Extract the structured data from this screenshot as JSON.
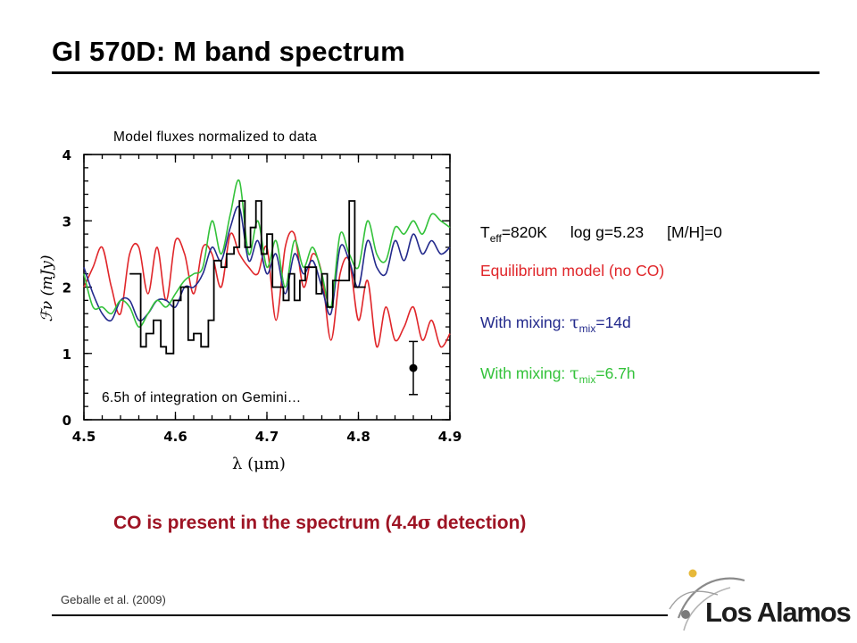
{
  "slide": {
    "title": "Gl 570D: M band spectrum",
    "citation": "Geballe et al. (2009)",
    "logo_text": "Los Alamos"
  },
  "notes": {
    "top": "Model fluxes normalized to data",
    "bottom": "6.5h of integration on Gemini…"
  },
  "legend": {
    "params": {
      "T": "T",
      "eff_sub": "eff",
      "teff_rest": "=820K",
      "logg": "log g=5.23",
      "metal": "[M/H]=0"
    },
    "equilibrium": {
      "text": "Equilibrium model  (no CO)",
      "color": "#e0262a"
    },
    "mixing_14d": {
      "prefix": "With mixing: ",
      "tau": "τ",
      "sub": "mix",
      "rest": "=14d",
      "color": "#232a8c"
    },
    "mixing_67h": {
      "prefix": "With mixing: ",
      "tau": "τ",
      "sub": "mix",
      "rest": "=6.7h",
      "color": "#33c23a"
    }
  },
  "conclusion": {
    "prefix": "CO is present in the spectrum (4.4",
    "sigma": "σ",
    "suffix": " detection)",
    "color": "#9e1424"
  },
  "chart_data": {
    "type": "line",
    "xlabel": "λ (μm)",
    "ylabel": "ℱν (mJy)",
    "xlim": [
      4.5,
      4.9
    ],
    "ylim": [
      0,
      4
    ],
    "xticks": [
      4.5,
      4.6,
      4.7,
      4.8,
      4.9
    ],
    "yticks": [
      0,
      1,
      2,
      3,
      4
    ],
    "xtick_labels": [
      "4.5",
      "4.6",
      "4.7",
      "4.8",
      "4.9"
    ],
    "ytick_labels": [
      "0",
      "1",
      "2",
      "3",
      "4"
    ],
    "series": [
      {
        "color": "#000000",
        "style": "step",
        "x": [
          4.55,
          4.562,
          4.568,
          4.576,
          4.584,
          4.59,
          4.598,
          4.606,
          4.614,
          4.62,
          4.628,
          4.636,
          4.642,
          4.65,
          4.656,
          4.664,
          4.67,
          4.676,
          4.682,
          4.688,
          4.694,
          4.7,
          4.706,
          4.712,
          4.718,
          4.724,
          4.73,
          4.736,
          4.742,
          4.748,
          4.754,
          4.76,
          4.766,
          4.772,
          4.778,
          4.784,
          4.79,
          4.796
        ],
        "y": [
          2.2,
          1.1,
          1.3,
          1.5,
          1.1,
          1.0,
          1.8,
          2.0,
          1.2,
          1.3,
          1.1,
          1.5,
          2.4,
          2.3,
          2.5,
          2.6,
          3.3,
          2.6,
          2.9,
          3.3,
          2.5,
          2.8,
          2.0,
          2.0,
          1.8,
          2.2,
          1.8,
          2.1,
          2.3,
          2.3,
          1.9,
          2.2,
          1.7,
          2.1,
          2.1,
          2.1,
          3.3,
          2.0
        ]
      },
      {
        "color": "#e0262a",
        "style": "line",
        "x": [
          4.5,
          4.51,
          4.52,
          4.53,
          4.54,
          4.55,
          4.56,
          4.57,
          4.58,
          4.59,
          4.6,
          4.61,
          4.62,
          4.63,
          4.64,
          4.65,
          4.66,
          4.67,
          4.68,
          4.69,
          4.7,
          4.71,
          4.72,
          4.73,
          4.74,
          4.75,
          4.76,
          4.77,
          4.78,
          4.79,
          4.8,
          4.81,
          4.82,
          4.83,
          4.84,
          4.85,
          4.86,
          4.87,
          4.88,
          4.89,
          4.9
        ],
        "y": [
          2.0,
          2.3,
          2.6,
          2.0,
          1.6,
          2.5,
          2.6,
          1.9,
          2.6,
          1.8,
          2.7,
          2.5,
          1.9,
          2.6,
          2.5,
          2.0,
          2.8,
          2.5,
          2.3,
          2.2,
          2.6,
          1.5,
          2.6,
          2.8,
          2.0,
          2.5,
          2.2,
          1.2,
          2.2,
          2.4,
          1.5,
          2.1,
          1.1,
          1.7,
          1.2,
          1.4,
          1.7,
          1.2,
          1.5,
          1.1,
          1.3
        ]
      },
      {
        "color": "#232a8c",
        "style": "line",
        "x": [
          4.5,
          4.51,
          4.52,
          4.53,
          4.54,
          4.55,
          4.56,
          4.57,
          4.58,
          4.59,
          4.6,
          4.61,
          4.62,
          4.63,
          4.64,
          4.65,
          4.66,
          4.67,
          4.68,
          4.69,
          4.7,
          4.71,
          4.72,
          4.73,
          4.74,
          4.75,
          4.76,
          4.77,
          4.78,
          4.79,
          4.8,
          4.81,
          4.82,
          4.83,
          4.84,
          4.85,
          4.86,
          4.87,
          4.88,
          4.89,
          4.9
        ],
        "y": [
          2.3,
          1.9,
          1.6,
          1.5,
          1.8,
          1.8,
          1.5,
          1.6,
          1.8,
          1.8,
          1.7,
          2.0,
          2.0,
          2.2,
          2.6,
          2.4,
          2.9,
          3.2,
          2.4,
          2.7,
          2.2,
          2.5,
          1.9,
          2.5,
          2.2,
          2.4,
          2.0,
          1.6,
          2.6,
          2.4,
          2.0,
          2.7,
          2.3,
          2.2,
          2.7,
          2.4,
          2.8,
          2.5,
          2.7,
          2.5,
          2.6
        ]
      },
      {
        "color": "#33c23a",
        "style": "line",
        "x": [
          4.5,
          4.51,
          4.52,
          4.53,
          4.54,
          4.55,
          4.56,
          4.57,
          4.58,
          4.59,
          4.6,
          4.61,
          4.62,
          4.63,
          4.64,
          4.65,
          4.66,
          4.67,
          4.68,
          4.69,
          4.7,
          4.71,
          4.72,
          4.73,
          4.74,
          4.75,
          4.76,
          4.77,
          4.78,
          4.79,
          4.8,
          4.81,
          4.82,
          4.83,
          4.84,
          4.85,
          4.86,
          4.87,
          4.88,
          4.89,
          4.9
        ],
        "y": [
          2.2,
          1.7,
          1.7,
          1.6,
          1.8,
          1.7,
          1.4,
          1.6,
          1.8,
          1.7,
          1.9,
          2.1,
          2.2,
          2.3,
          3.0,
          2.5,
          3.1,
          3.6,
          2.5,
          3.0,
          2.3,
          2.7,
          2.0,
          2.7,
          2.3,
          2.6,
          2.2,
          1.7,
          2.8,
          2.5,
          2.3,
          3.0,
          2.5,
          2.4,
          2.9,
          2.8,
          3.0,
          2.8,
          3.1,
          3.0,
          2.9
        ]
      }
    ],
    "error_bar": {
      "x": 4.86,
      "y": 0.78,
      "yerr": 0.4
    }
  }
}
